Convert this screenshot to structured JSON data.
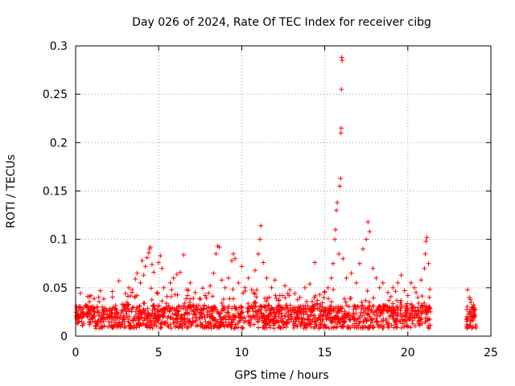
{
  "chart_data": {
    "type": "scatter",
    "title": "Day 026 of 2024, Rate Of TEC Index for receiver cibg",
    "xlabel": "GPS time / hours",
    "ylabel": "ROTI / TECUs",
    "xlim": [
      0,
      25
    ],
    "ylim": [
      0,
      0.3
    ],
    "xticks": [
      0,
      5,
      10,
      15,
      20,
      25
    ],
    "xtick_labels": [
      "0",
      "5",
      "10",
      "15",
      "20",
      "25"
    ],
    "yticks": [
      0,
      0.05,
      0.1,
      0.15,
      0.2,
      0.25,
      0.3
    ],
    "ytick_labels": [
      "0",
      "0.05",
      "0.1",
      "0.15",
      "0.2",
      "0.25",
      "0.3"
    ],
    "grid": true,
    "marker": "+",
    "color": "#ff0000",
    "data_gaps_hours": [
      [
        21.4,
        23.5
      ]
    ],
    "series": [
      {
        "name": "ROTI",
        "points": [
          [
            0.1,
            0.018
          ],
          [
            0.3,
            0.028
          ],
          [
            0.5,
            0.022
          ],
          [
            0.7,
            0.031
          ],
          [
            0.9,
            0.026
          ],
          [
            1.1,
            0.02
          ],
          [
            1.3,
            0.024
          ],
          [
            1.5,
            0.019
          ],
          [
            1.7,
            0.027
          ],
          [
            1.9,
            0.023
          ],
          [
            2.1,
            0.021
          ],
          [
            2.3,
            0.03
          ],
          [
            2.5,
            0.025
          ],
          [
            2.6,
            0.057
          ],
          [
            2.8,
            0.033
          ],
          [
            3.0,
            0.044
          ],
          [
            3.2,
            0.05
          ],
          [
            3.4,
            0.048
          ],
          [
            3.6,
            0.059
          ],
          [
            3.7,
            0.065
          ],
          [
            3.9,
            0.055
          ],
          [
            4.0,
            0.078
          ],
          [
            4.1,
            0.063
          ],
          [
            4.2,
            0.072
          ],
          [
            4.3,
            0.081
          ],
          [
            4.4,
            0.086
          ],
          [
            4.45,
            0.09
          ],
          [
            4.5,
            0.092
          ],
          [
            4.6,
            0.074
          ],
          [
            4.7,
            0.066
          ],
          [
            4.9,
            0.045
          ],
          [
            5.0,
            0.076
          ],
          [
            5.1,
            0.083
          ],
          [
            5.2,
            0.07
          ],
          [
            5.3,
            0.05
          ],
          [
            5.5,
            0.041
          ],
          [
            5.7,
            0.055
          ],
          [
            5.9,
            0.06
          ],
          [
            6.1,
            0.064
          ],
          [
            6.3,
            0.066
          ],
          [
            6.5,
            0.084
          ],
          [
            6.7,
            0.048
          ],
          [
            6.9,
            0.055
          ],
          [
            7.2,
            0.045
          ],
          [
            7.5,
            0.038
          ],
          [
            7.8,
            0.042
          ],
          [
            8.1,
            0.052
          ],
          [
            8.3,
            0.065
          ],
          [
            8.45,
            0.085
          ],
          [
            8.55,
            0.093
          ],
          [
            8.65,
            0.092
          ],
          [
            8.8,
            0.058
          ],
          [
            9.0,
            0.05
          ],
          [
            9.2,
            0.06
          ],
          [
            9.4,
            0.078
          ],
          [
            9.5,
            0.085
          ],
          [
            9.6,
            0.08
          ],
          [
            9.8,
            0.055
          ],
          [
            10.0,
            0.072
          ],
          [
            10.2,
            0.05
          ],
          [
            10.4,
            0.06
          ],
          [
            10.6,
            0.048
          ],
          [
            10.8,
            0.068
          ],
          [
            11.0,
            0.085
          ],
          [
            11.1,
            0.1
          ],
          [
            11.15,
            0.114
          ],
          [
            11.3,
            0.076
          ],
          [
            11.5,
            0.06
          ],
          [
            11.8,
            0.05
          ],
          [
            12.0,
            0.058
          ],
          [
            12.3,
            0.042
          ],
          [
            12.6,
            0.052
          ],
          [
            12.9,
            0.048
          ],
          [
            13.2,
            0.044
          ],
          [
            13.5,
            0.04
          ],
          [
            13.8,
            0.05
          ],
          [
            14.1,
            0.054
          ],
          [
            14.4,
            0.076
          ],
          [
            14.7,
            0.043
          ],
          [
            15.0,
            0.046
          ],
          [
            15.2,
            0.05
          ],
          [
            15.4,
            0.06
          ],
          [
            15.5,
            0.075
          ],
          [
            15.6,
            0.1
          ],
          [
            15.65,
            0.11
          ],
          [
            15.7,
            0.13
          ],
          [
            15.75,
            0.138
          ],
          [
            15.85,
            0.085
          ],
          [
            15.9,
            0.155
          ],
          [
            15.95,
            0.163
          ],
          [
            15.97,
            0.21
          ],
          [
            15.99,
            0.215
          ],
          [
            16.0,
            0.255
          ],
          [
            16.02,
            0.288
          ],
          [
            16.05,
            0.285
          ],
          [
            16.1,
            0.08
          ],
          [
            16.3,
            0.06
          ],
          [
            16.6,
            0.065
          ],
          [
            16.9,
            0.055
          ],
          [
            17.1,
            0.075
          ],
          [
            17.3,
            0.09
          ],
          [
            17.5,
            0.1
          ],
          [
            17.6,
            0.118
          ],
          [
            17.7,
            0.108
          ],
          [
            17.9,
            0.07
          ],
          [
            18.1,
            0.06
          ],
          [
            18.3,
            0.05
          ],
          [
            18.5,
            0.055
          ],
          [
            18.8,
            0.045
          ],
          [
            19.1,
            0.05
          ],
          [
            19.4,
            0.055
          ],
          [
            19.6,
            0.063
          ],
          [
            19.8,
            0.047
          ],
          [
            20.0,
            0.042
          ],
          [
            20.2,
            0.055
          ],
          [
            20.4,
            0.05
          ],
          [
            20.6,
            0.04
          ],
          [
            20.8,
            0.058
          ],
          [
            21.0,
            0.07
          ],
          [
            21.05,
            0.085
          ],
          [
            21.1,
            0.098
          ],
          [
            21.15,
            0.102
          ],
          [
            21.25,
            0.075
          ],
          [
            21.3,
            0.04
          ],
          [
            23.6,
            0.048
          ],
          [
            23.7,
            0.04
          ],
          [
            23.8,
            0.035
          ],
          [
            23.9,
            0.03
          ],
          [
            24.0,
            0.025
          ]
        ]
      }
    ]
  }
}
